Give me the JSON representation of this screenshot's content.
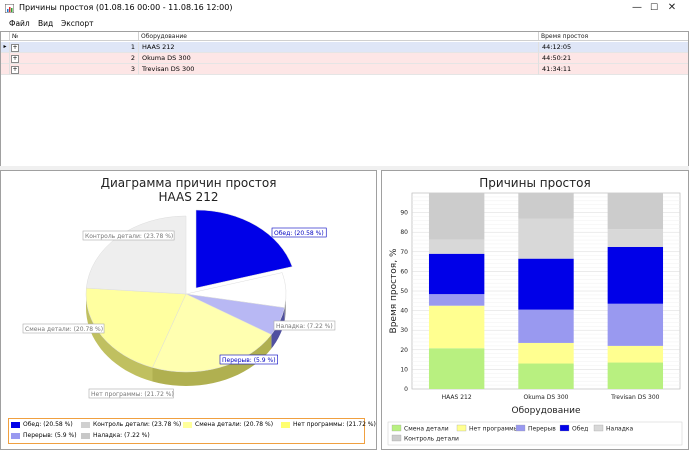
{
  "window": {
    "title": "Причины простоя (01.08.16 00:00 - 11.08.16 12:00)",
    "minimize_glyph": "—",
    "maximize_glyph": "☐",
    "close_glyph": "✕",
    "app_icon": "app-icon"
  },
  "menu": {
    "items": [
      "Файл",
      "Вид",
      "Экспорт"
    ]
  },
  "grid": {
    "headers": [
      "№",
      "Оборудование",
      "Время простоя"
    ],
    "rows": [
      {
        "num": "1",
        "equipment": "HAAS 212",
        "downtime": "44:12:05"
      },
      {
        "num": "2",
        "equipment": "Okuma DS 300",
        "downtime": "44:50:21"
      },
      {
        "num": "3",
        "equipment": "Trevisan DS 300",
        "downtime": "41:34:11"
      }
    ],
    "expander_glyph": "+",
    "row_indicator_glyph": "▸"
  },
  "colors": {
    "selected_row": "#dfe6f7",
    "row_pink": "#fde6e6",
    "obed": "#0000e8",
    "kontrol": "#d8d8d8",
    "smena": "#ffff9a",
    "net_programmy": "#ffffb0",
    "pereryv": "#9999f0",
    "naladka": "#f4f4f4",
    "legend_border": "#f0a040"
  },
  "chart_data": [
    {
      "type": "pie",
      "title": "Диаграмма причин простоя",
      "subtitle": "HAAS 212",
      "slices": [
        {
          "name": "Обед",
          "value": 20.58,
          "label": "Обед: (20.58 %)"
        },
        {
          "name": "Наладка",
          "value": 7.22,
          "label": "Наладка: (7.22 %)"
        },
        {
          "name": "Перерыв",
          "value": 5.9,
          "label": "Перерыв: (5.9 %)"
        },
        {
          "name": "Нет программы",
          "value": 21.72,
          "label": "Нет программы: (21.72 %)"
        },
        {
          "name": "Смена детали",
          "value": 20.78,
          "label": "Смена детали: (20.78 %)"
        },
        {
          "name": "Контроль детали",
          "value": 23.78,
          "label": "Контроль детали: (23.78 %)"
        }
      ],
      "legend": [
        {
          "label": "Обед: (20.58 %)",
          "color": "#0000e8"
        },
        {
          "label": "Контроль детали: (23.78 %)",
          "color": "#d0d0d0"
        },
        {
          "label": "Смена детали: (20.78 %)",
          "color": "#ffff9a"
        },
        {
          "label": "Нет программы: (21.72 %)",
          "color": "#ffff70"
        },
        {
          "label": "Перерыв: (5.9 %)",
          "color": "#9999f0"
        },
        {
          "label": "Наладка: (7.22 %)",
          "color": "#c8c8c8"
        }
      ],
      "legend_position": "bottom"
    },
    {
      "type": "bar",
      "stacked": true,
      "title": "Причины простоя",
      "xlabel": "Оборудование",
      "ylabel": "Время простоя, %",
      "ylim": [
        0,
        100
      ],
      "yticks": [
        0,
        10,
        20,
        30,
        40,
        50,
        60,
        70,
        80,
        90
      ],
      "grid": true,
      "categories": [
        "HAAS 212",
        "Okuma DS 300",
        "Trevisan DS 300"
      ],
      "series": [
        {
          "name": "Смена детали",
          "color": "#b8f080",
          "values": [
            20.8,
            13,
            13.5
          ]
        },
        {
          "name": "Нет программы",
          "color": "#ffff90",
          "values": [
            21.7,
            10.5,
            8.5
          ]
        },
        {
          "name": "Перерыв",
          "color": "#9999f0",
          "values": [
            5.9,
            17,
            21.5
          ]
        },
        {
          "name": "Обед",
          "color": "#0000e8",
          "values": [
            20.6,
            26,
            29
          ]
        },
        {
          "name": "Наладка",
          "color": "#d8d8d8",
          "values": [
            7.2,
            20.5,
            9
          ]
        },
        {
          "name": "Контроль детали",
          "color": "#cccccc",
          "values": [
            23.8,
            13,
            18.5
          ]
        }
      ],
      "legend_position": "bottom"
    }
  ]
}
